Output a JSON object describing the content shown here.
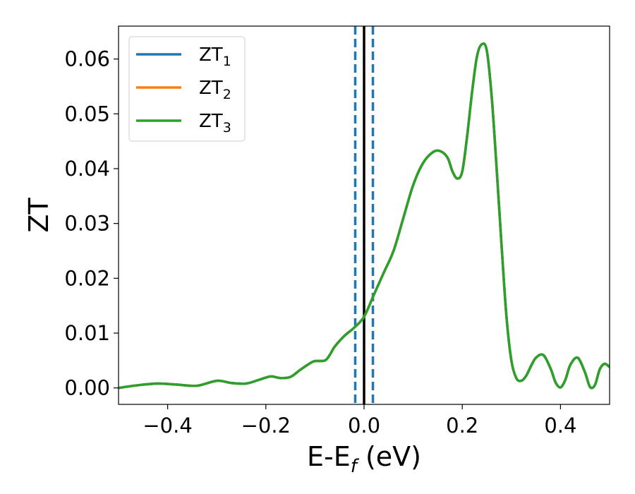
{
  "chart_data": {
    "type": "line",
    "xlabel": "E-E",
    "xlabel_sub": "f",
    "xlabel_unit": " (eV)",
    "ylabel": "ZT",
    "xlim": [
      -0.5,
      0.5
    ],
    "ylim": [
      -0.003,
      0.066
    ],
    "xticks": [
      -0.4,
      -0.2,
      0.0,
      0.2,
      0.4
    ],
    "xtick_labels": [
      "−0.4",
      "−0.2",
      "0.0",
      "0.2",
      "0.4"
    ],
    "yticks": [
      0.0,
      0.01,
      0.02,
      0.03,
      0.04,
      0.05,
      0.06
    ],
    "ytick_labels": [
      "0.00",
      "0.01",
      "0.02",
      "0.03",
      "0.04",
      "0.05",
      "0.06"
    ],
    "grid": false,
    "legend_position": "top-left",
    "vlines": [
      {
        "x": -0.018,
        "style": "dashed",
        "color": "#1f77b4"
      },
      {
        "x": 0.0,
        "style": "solid",
        "color": "#000000"
      },
      {
        "x": 0.018,
        "style": "dashed",
        "color": "#1f77b4"
      }
    ],
    "series": [
      {
        "name": "ZT",
        "sub": "1",
        "color": "#1f77b4"
      },
      {
        "name": "ZT",
        "sub": "2",
        "color": "#ff7f0e"
      },
      {
        "name": "ZT",
        "sub": "3",
        "color": "#2ca02c"
      }
    ],
    "x": [
      -0.5,
      -0.46,
      -0.42,
      -0.38,
      -0.34,
      -0.3,
      -0.27,
      -0.24,
      -0.21,
      -0.19,
      -0.17,
      -0.15,
      -0.13,
      -0.11,
      -0.1,
      -0.08,
      -0.07,
      -0.06,
      -0.04,
      -0.02,
      0.0,
      0.02,
      0.04,
      0.06,
      0.08,
      0.1,
      0.12,
      0.14,
      0.155,
      0.17,
      0.18,
      0.19,
      0.2,
      0.21,
      0.22,
      0.23,
      0.24,
      0.25,
      0.26,
      0.27,
      0.28,
      0.29,
      0.3,
      0.31,
      0.32,
      0.33,
      0.34,
      0.35,
      0.365,
      0.38,
      0.39,
      0.4,
      0.41,
      0.42,
      0.435,
      0.45,
      0.46,
      0.47,
      0.48,
      0.49,
      0.5
    ],
    "y": [
      0.0,
      0.0005,
      0.0008,
      0.0006,
      0.0004,
      0.0013,
      0.0009,
      0.0008,
      0.0016,
      0.0021,
      0.0018,
      0.002,
      0.0033,
      0.0045,
      0.0049,
      0.005,
      0.006,
      0.0075,
      0.0095,
      0.011,
      0.013,
      0.017,
      0.021,
      0.025,
      0.031,
      0.037,
      0.041,
      0.043,
      0.0432,
      0.042,
      0.0395,
      0.0382,
      0.0395,
      0.046,
      0.054,
      0.0605,
      0.0627,
      0.0615,
      0.053,
      0.04,
      0.026,
      0.013,
      0.005,
      0.0018,
      0.0013,
      0.0022,
      0.004,
      0.0055,
      0.006,
      0.0035,
      0.001,
      0.0001,
      0.0015,
      0.0042,
      0.0055,
      0.0028,
      0.0002,
      0.0005,
      0.0034,
      0.0044,
      0.0038
    ]
  }
}
